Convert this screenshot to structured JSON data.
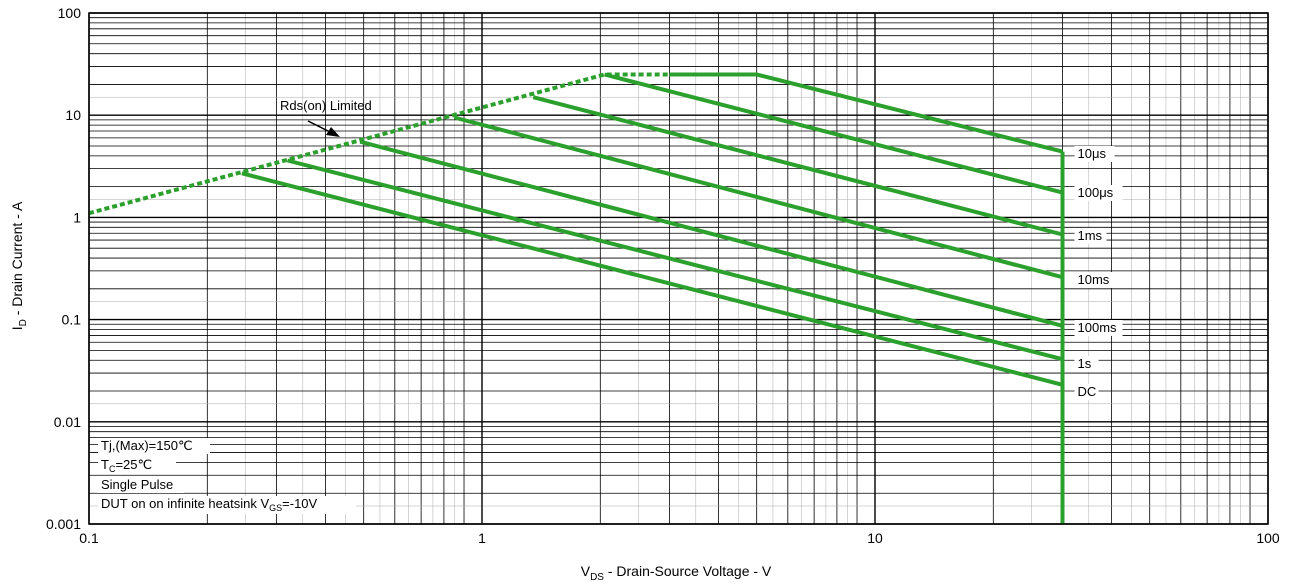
{
  "chart_data": {
    "type": "line",
    "xlabel": {
      "main": "V",
      "sub": "DS",
      "rest": " - Drain-Source Voltage - V"
    },
    "ylabel": {
      "main": "I",
      "sub": "D",
      "rest": " - Drain Current - A"
    },
    "x_scale": "log",
    "y_scale": "log",
    "xlim": [
      0.1,
      100
    ],
    "ylim": [
      0.001,
      100
    ],
    "grid": true,
    "x_ticks": [
      {
        "value": 0.1,
        "label": "0.1"
      },
      {
        "value": 1,
        "label": "1"
      },
      {
        "value": 10,
        "label": "10"
      },
      {
        "value": 100,
        "label": "100"
      }
    ],
    "y_ticks": [
      {
        "value": 0.001,
        "label": "0.001"
      },
      {
        "value": 0.01,
        "label": "0.01"
      },
      {
        "value": 0.1,
        "label": "0.1"
      },
      {
        "value": 1,
        "label": "1"
      },
      {
        "value": 10,
        "label": "10"
      },
      {
        "value": 100,
        "label": "100"
      }
    ],
    "line_color": "#2ca02c",
    "rds_limit": {
      "label": "Rds(on) Limited",
      "style": "dotted",
      "points": [
        [
          0.1,
          1.1
        ],
        [
          2.05,
          25
        ],
        [
          3.0,
          25
        ]
      ]
    },
    "vertical_limit": {
      "x": 30,
      "y_from": 0.001,
      "y_to": 4.4
    },
    "series": [
      {
        "name": "10μs",
        "points": [
          [
            3.0,
            25
          ],
          [
            5.0,
            25
          ],
          [
            30,
            4.4
          ]
        ]
      },
      {
        "name": "100μs",
        "points": [
          [
            2.05,
            25
          ],
          [
            30,
            1.75
          ]
        ]
      },
      {
        "name": "1ms",
        "points": [
          [
            1.35,
            15
          ],
          [
            30,
            0.68
          ]
        ]
      },
      {
        "name": "10ms",
        "points": [
          [
            0.85,
            9.5
          ],
          [
            30,
            0.26
          ]
        ]
      },
      {
        "name": "100ms",
        "points": [
          [
            0.49,
            5.5
          ],
          [
            30,
            0.087
          ]
        ]
      },
      {
        "name": "1s",
        "points": [
          [
            0.32,
            3.6
          ],
          [
            30,
            0.041
          ]
        ]
      },
      {
        "name": "DC",
        "points": [
          [
            0.245,
            2.7
          ],
          [
            30,
            0.023
          ]
        ]
      }
    ],
    "conditions": {
      "line1": {
        "text": "Tj,(Max)=150℃"
      },
      "line2": {
        "main": "T",
        "sub": "C",
        "rest": "=25℃"
      },
      "line3": {
        "text": "Single Pulse"
      },
      "line4": {
        "main": "DUT on on infinite heatsink V",
        "sub": "GS",
        "rest": "=-10V"
      }
    }
  }
}
